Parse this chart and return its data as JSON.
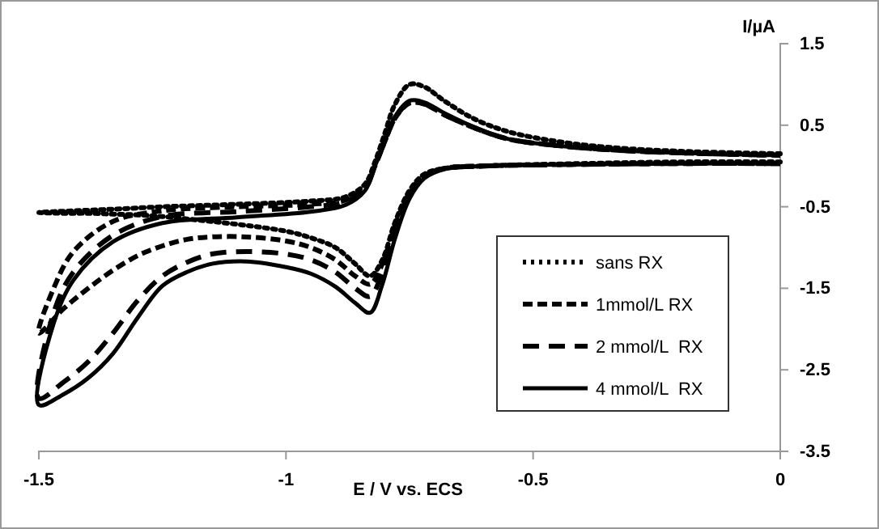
{
  "chart_data": {
    "type": "line",
    "xlabel": "E / V vs. ECS",
    "ylabel": "I/µA",
    "xlim": [
      -1.5,
      0
    ],
    "xticks": [
      -1.5,
      -1,
      -0.5,
      0
    ],
    "ylim": [
      -3.5,
      1.5
    ],
    "yticks": [
      -3.5,
      -2.5,
      -1.5,
      -0.5,
      0.5,
      1.5
    ],
    "grid": false,
    "legend": "bottom right",
    "marker": "none",
    "series": [
      {
        "name": "sans RX",
        "color": "#000000",
        "line_style": "dotted",
        "x": [
          0,
          -0.2,
          -0.4,
          -0.6,
          -0.68,
          -0.72,
          -0.75,
          -0.78,
          -0.805,
          -0.83,
          -0.86,
          -0.9,
          -0.95,
          -1.0,
          -1.08,
          -1.15,
          -1.2,
          -1.25,
          -1.3,
          -1.35,
          -1.4,
          -1.45,
          -1.5,
          -1.47,
          -1.43,
          -1.35,
          -1.25,
          -1.1,
          -0.95,
          -0.88,
          -0.84,
          -0.82,
          -0.8,
          -0.78,
          -0.75,
          -0.72,
          -0.68,
          -0.62,
          -0.55,
          -0.45,
          -0.35,
          -0.2,
          0
        ],
        "values": [
          0.05,
          0.05,
          0.03,
          0.0,
          -0.03,
          -0.1,
          -0.3,
          -0.7,
          -1.15,
          -1.35,
          -1.2,
          -1.0,
          -0.88,
          -0.8,
          -0.73,
          -0.68,
          -0.65,
          -0.62,
          -0.6,
          -0.59,
          -0.58,
          -0.58,
          -0.57,
          -0.56,
          -0.55,
          -0.53,
          -0.5,
          -0.47,
          -0.43,
          -0.38,
          -0.22,
          0.05,
          0.4,
          0.75,
          1.0,
          0.97,
          0.8,
          0.58,
          0.42,
          0.3,
          0.23,
          0.18,
          0.15
        ]
      },
      {
        "name": "1mmol/L RX",
        "color": "#000000",
        "line_style": "dashed",
        "x": [
          0,
          -0.2,
          -0.4,
          -0.6,
          -0.68,
          -0.72,
          -0.75,
          -0.78,
          -0.805,
          -0.83,
          -0.86,
          -0.9,
          -0.95,
          -1.0,
          -1.08,
          -1.15,
          -1.2,
          -1.25,
          -1.3,
          -1.35,
          -1.4,
          -1.45,
          -1.5,
          -1.47,
          -1.43,
          -1.35,
          -1.25,
          -1.1,
          -0.95,
          -0.88,
          -0.84,
          -0.82,
          -0.8,
          -0.78,
          -0.75,
          -0.72,
          -0.68,
          -0.62,
          -0.55,
          -0.45,
          -0.35,
          -0.2,
          0
        ],
        "values": [
          0.03,
          0.03,
          0.02,
          0.0,
          -0.03,
          -0.12,
          -0.33,
          -0.75,
          -1.2,
          -1.45,
          -1.35,
          -1.15,
          -1.0,
          -0.92,
          -0.87,
          -0.87,
          -0.9,
          -0.98,
          -1.1,
          -1.28,
          -1.5,
          -1.75,
          -2.05,
          -1.5,
          -1.05,
          -0.68,
          -0.55,
          -0.5,
          -0.47,
          -0.42,
          -0.26,
          0.0,
          0.3,
          0.58,
          0.77,
          0.76,
          0.63,
          0.47,
          0.33,
          0.25,
          0.2,
          0.16,
          0.13
        ]
      },
      {
        "name": "2 mmol/L  RX",
        "color": "#000000",
        "line_style": "dashed",
        "x": [
          0,
          -0.2,
          -0.4,
          -0.6,
          -0.68,
          -0.72,
          -0.75,
          -0.78,
          -0.805,
          -0.83,
          -0.86,
          -0.9,
          -0.95,
          -1.0,
          -1.08,
          -1.15,
          -1.2,
          -1.25,
          -1.3,
          -1.35,
          -1.4,
          -1.45,
          -1.5,
          -1.47,
          -1.43,
          -1.35,
          -1.25,
          -1.1,
          -0.95,
          -0.88,
          -0.84,
          -0.82,
          -0.8,
          -0.78,
          -0.75,
          -0.72,
          -0.68,
          -0.62,
          -0.55,
          -0.45,
          -0.35,
          -0.2,
          0
        ],
        "values": [
          0.03,
          0.03,
          0.02,
          0.0,
          -0.03,
          -0.12,
          -0.35,
          -0.8,
          -1.3,
          -1.6,
          -1.5,
          -1.3,
          -1.15,
          -1.08,
          -1.05,
          -1.08,
          -1.18,
          -1.35,
          -1.65,
          -2.05,
          -2.4,
          -2.65,
          -2.85,
          -1.8,
          -1.3,
          -0.85,
          -0.62,
          -0.56,
          -0.5,
          -0.44,
          -0.28,
          0.0,
          0.3,
          0.58,
          0.78,
          0.76,
          0.63,
          0.47,
          0.33,
          0.25,
          0.2,
          0.16,
          0.13
        ]
      },
      {
        "name": "4 mmol/L  RX",
        "color": "#000000",
        "line_style": "solid",
        "x": [
          0,
          -0.2,
          -0.4,
          -0.6,
          -0.68,
          -0.72,
          -0.75,
          -0.78,
          -0.805,
          -0.83,
          -0.86,
          -0.9,
          -0.95,
          -1.0,
          -1.08,
          -1.15,
          -1.2,
          -1.25,
          -1.3,
          -1.35,
          -1.4,
          -1.45,
          -1.5,
          -1.47,
          -1.43,
          -1.35,
          -1.25,
          -1.1,
          -0.95,
          -0.88,
          -0.84,
          -0.82,
          -0.8,
          -0.78,
          -0.75,
          -0.72,
          -0.68,
          -0.62,
          -0.55,
          -0.45,
          -0.35,
          -0.2,
          0
        ],
        "values": [
          0.03,
          0.03,
          0.02,
          0.0,
          -0.04,
          -0.15,
          -0.4,
          -0.9,
          -1.45,
          -1.8,
          -1.68,
          -1.48,
          -1.32,
          -1.24,
          -1.17,
          -1.2,
          -1.3,
          -1.47,
          -1.86,
          -2.3,
          -2.6,
          -2.8,
          -2.93,
          -1.93,
          -1.4,
          -0.93,
          -0.7,
          -0.63,
          -0.56,
          -0.48,
          -0.3,
          0.0,
          0.3,
          0.6,
          0.8,
          0.78,
          0.65,
          0.48,
          0.33,
          0.25,
          0.2,
          0.16,
          0.13
        ]
      }
    ]
  }
}
